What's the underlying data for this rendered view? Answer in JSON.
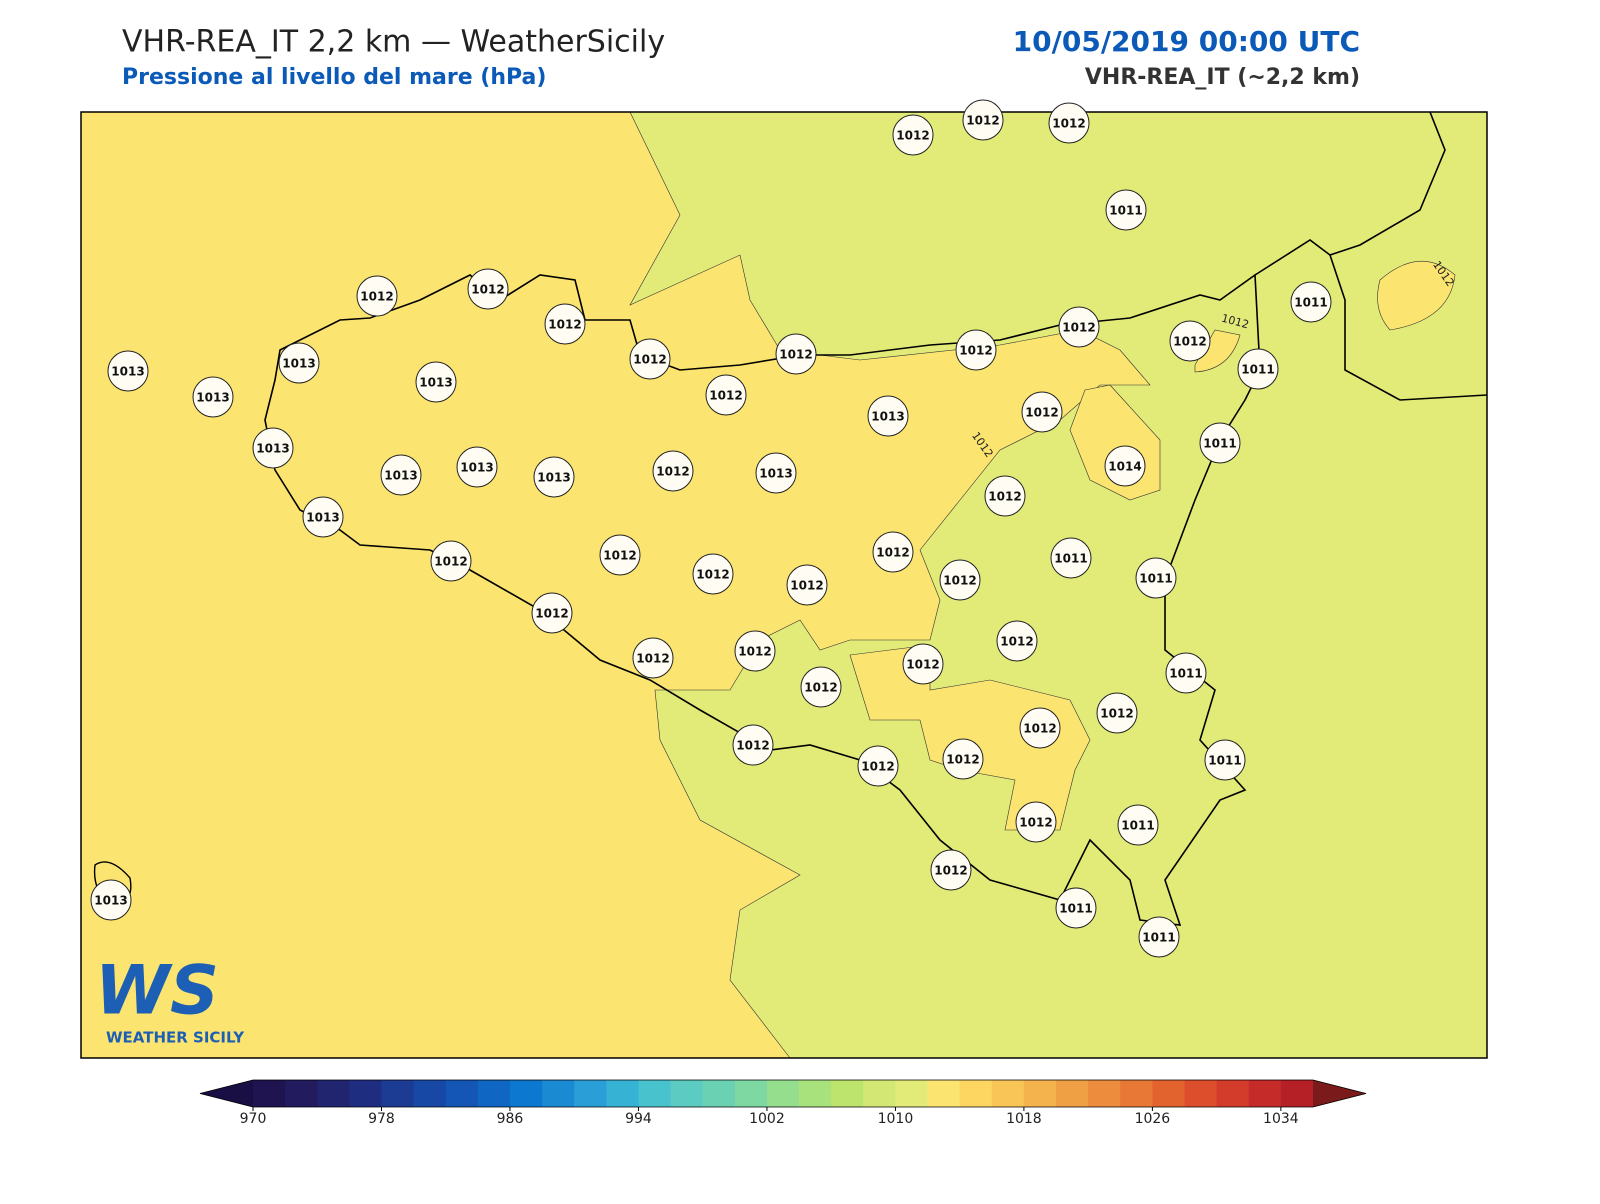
{
  "header": {
    "title": "VHR-REA_IT 2,2 km — WeatherSicily",
    "subtitle": "Pressione al livello del mare (hPa)",
    "datetime": "10/05/2019 00:00 UTC",
    "model": "VHR-REA_IT (~2,2 km)"
  },
  "map": {
    "stations": [
      1012,
      1012,
      1012,
      1011,
      1012,
      1012,
      1012,
      1011,
      1012,
      1012,
      1012,
      1012,
      1012,
      1011,
      1013,
      1013,
      1013,
      1012,
      1013,
      1013,
      1012,
      1011,
      1013,
      1013,
      1013,
      1013,
      1012,
      1013,
      1014,
      1012,
      1013,
      1012,
      1011,
      1011,
      1012,
      1012,
      1012,
      1012,
      1012,
      1012,
      1012,
      1012,
      1012,
      1012,
      1011,
      1012,
      1012,
      1012,
      1012,
      1012,
      1012,
      1011,
      1012,
      1011,
      1012,
      1011,
      1011,
      1013
    ],
    "contour_labels": [
      1012,
      1012,
      1012
    ]
  },
  "logo": {
    "mark": "WS",
    "name": "WEATHER SICILY"
  },
  "colorbar": {
    "range": [
      970,
      1036
    ],
    "ticks": [
      970,
      978,
      986,
      994,
      1002,
      1010,
      1018,
      1026,
      1034
    ],
    "colors": [
      "#1f1450",
      "#221b5e",
      "#21246f",
      "#1f2d80",
      "#1c3b92",
      "#1848a5",
      "#1456b5",
      "#0f66c3",
      "#0d78cf",
      "#1a8ad3",
      "#2a9ed6",
      "#35b2d4",
      "#48c2cd",
      "#5ccbc1",
      "#6bd1b3",
      "#7ed8a2",
      "#95de8e",
      "#a8e27c",
      "#bde46c",
      "#d3e874",
      "#e2eb78",
      "#fbe46f",
      "#fcd661",
      "#f8c556",
      "#f4b34d",
      "#f0a044",
      "#ec8c3c",
      "#e87835",
      "#e3632f",
      "#dc4e2c",
      "#d33b2a",
      "#c52b28",
      "#b51f26"
    ],
    "under_color": "#1a0f45",
    "over_color": "#7a1a1a"
  }
}
